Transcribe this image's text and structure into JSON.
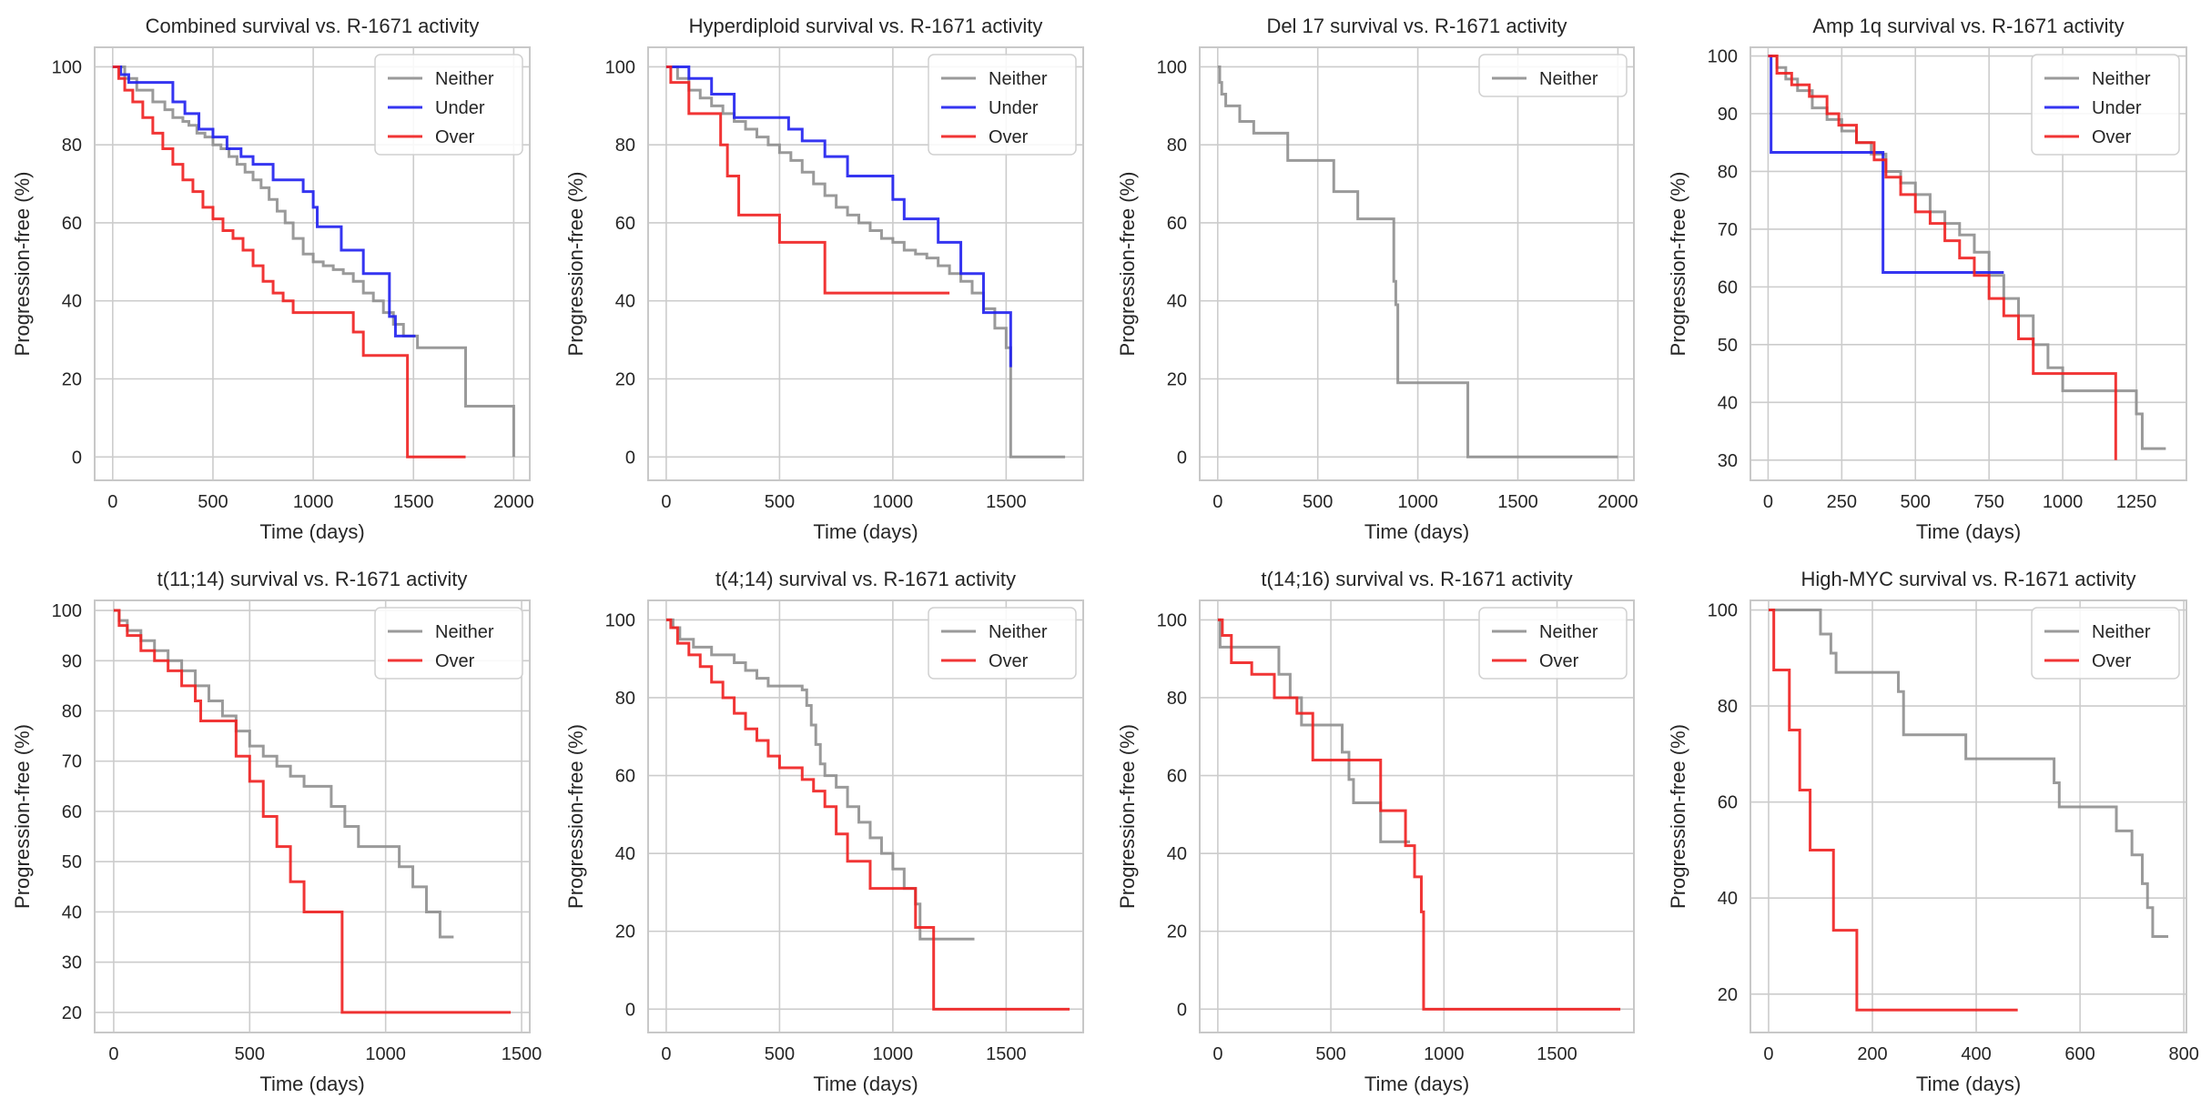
{
  "figure": {
    "colors": {
      "Neither": "#8f8f8f",
      "Under": "#1f1ff0",
      "Over": "#f01f1f",
      "grid": "#cccccc",
      "frame": "#c8c8c8"
    }
  },
  "chart_data": [
    {
      "type": "line",
      "step": true,
      "title": "Combined survival vs. R-1671 activity",
      "xlabel": "Time (days)",
      "ylabel": "Progression-free (%)",
      "xlim": [
        -90,
        2080
      ],
      "ylim": [
        -6,
        105
      ],
      "xticks": [
        0,
        500,
        1000,
        1500,
        2000
      ],
      "yticks": [
        0,
        20,
        40,
        60,
        80,
        100
      ],
      "grid": true,
      "legend": "top-right",
      "series": [
        {
          "name": "Neither",
          "x": [
            0,
            60,
            120,
            200,
            260,
            300,
            350,
            380,
            420,
            460,
            500,
            540,
            580,
            620,
            660,
            700,
            740,
            780,
            820,
            860,
            900,
            950,
            1000,
            1050,
            1100,
            1150,
            1200,
            1250,
            1300,
            1350,
            1400,
            1450,
            1520,
            1760,
            2000
          ],
          "y": [
            100,
            97,
            94,
            91,
            89,
            87,
            86,
            85,
            83,
            82,
            80,
            79,
            77,
            75,
            73,
            71,
            69,
            66,
            63,
            60,
            56,
            52,
            50,
            49,
            48,
            47,
            45,
            42,
            40,
            37,
            34,
            31,
            28,
            13,
            0
          ]
        },
        {
          "name": "Under",
          "x": [
            0,
            40,
            80,
            300,
            360,
            430,
            500,
            570,
            640,
            700,
            800,
            950,
            1000,
            1020,
            1140,
            1250,
            1380,
            1410,
            1510
          ],
          "y": [
            100,
            98,
            96,
            91,
            88,
            84,
            82,
            79,
            77,
            75,
            71,
            68,
            64,
            59,
            53,
            47,
            36,
            31,
            31
          ]
        },
        {
          "name": "Over",
          "x": [
            0,
            30,
            60,
            100,
            150,
            200,
            250,
            300,
            350,
            400,
            450,
            500,
            550,
            600,
            650,
            700,
            750,
            800,
            850,
            900,
            950,
            1200,
            1250,
            1470,
            1760
          ],
          "y": [
            100,
            97,
            94,
            91,
            87,
            83,
            79,
            75,
            71,
            68,
            64,
            61,
            58,
            56,
            53,
            49,
            45,
            42,
            40,
            37,
            37,
            32,
            26,
            0,
            0
          ]
        }
      ]
    },
    {
      "type": "line",
      "step": true,
      "title": "Hyperdiploid survival vs. R-1671 activity",
      "xlabel": "Time (days)",
      "ylabel": "Progression-free (%)",
      "xlim": [
        -80,
        1840
      ],
      "ylim": [
        -6,
        105
      ],
      "xticks": [
        0,
        500,
        1000,
        1500
      ],
      "yticks": [
        0,
        20,
        40,
        60,
        80,
        100
      ],
      "grid": true,
      "legend": "top-right",
      "series": [
        {
          "name": "Neither",
          "x": [
            0,
            50,
            100,
            150,
            200,
            250,
            300,
            350,
            400,
            450,
            500,
            550,
            600,
            650,
            700,
            750,
            800,
            850,
            900,
            950,
            1000,
            1050,
            1100,
            1150,
            1200,
            1250,
            1300,
            1350,
            1400,
            1450,
            1500,
            1520,
            1760
          ],
          "y": [
            100,
            97,
            94,
            92,
            90,
            88,
            86,
            84,
            82,
            80,
            78,
            76,
            73,
            70,
            67,
            64,
            62,
            60,
            58,
            56,
            55,
            53,
            52,
            51,
            49,
            47,
            45,
            42,
            38,
            33,
            28,
            0,
            0
          ]
        },
        {
          "name": "Under",
          "x": [
            0,
            100,
            200,
            300,
            500,
            540,
            600,
            700,
            800,
            900,
            1000,
            1050,
            1200,
            1300,
            1400,
            1520
          ],
          "y": [
            100,
            97,
            93,
            87,
            87,
            84,
            81,
            77,
            72,
            72,
            66,
            61,
            55,
            47,
            37,
            23
          ]
        },
        {
          "name": "Over",
          "x": [
            0,
            20,
            100,
            240,
            270,
            320,
            500,
            700,
            1250
          ],
          "y": [
            100,
            96,
            88,
            80,
            72,
            62,
            55,
            42,
            42
          ]
        }
      ]
    },
    {
      "type": "line",
      "step": true,
      "title": "Del 17 survival vs. R-1671 activity",
      "xlabel": "Time (days)",
      "ylabel": "Progression-free (%)",
      "xlim": [
        -90,
        2080
      ],
      "ylim": [
        -6,
        105
      ],
      "xticks": [
        0,
        500,
        1000,
        1500,
        2000
      ],
      "yticks": [
        0,
        20,
        40,
        60,
        80,
        100
      ],
      "grid": true,
      "legend": "top-right",
      "series": [
        {
          "name": "Neither",
          "x": [
            0,
            10,
            20,
            40,
            110,
            180,
            350,
            580,
            700,
            880,
            890,
            900,
            910,
            1250,
            2000
          ],
          "y": [
            100,
            96,
            93,
            90,
            86,
            83,
            76,
            68,
            61,
            45,
            39,
            19,
            19,
            0,
            0
          ]
        }
      ]
    },
    {
      "type": "line",
      "step": true,
      "title": "Amp 1q survival vs. R-1671 activity",
      "xlabel": "Time (days)",
      "ylabel": "Progression-free (%)",
      "xlim": [
        -60,
        1420
      ],
      "ylim": [
        26.5,
        101.5
      ],
      "xticks": [
        0,
        250,
        500,
        750,
        1000,
        1250
      ],
      "yticks": [
        30,
        40,
        50,
        60,
        70,
        80,
        90,
        100
      ],
      "grid": true,
      "legend": "top-right",
      "series": [
        {
          "name": "Neither",
          "x": [
            0,
            30,
            60,
            100,
            150,
            200,
            250,
            300,
            350,
            400,
            450,
            500,
            550,
            600,
            650,
            700,
            750,
            800,
            850,
            900,
            950,
            1000,
            1050,
            1250,
            1270,
            1350
          ],
          "y": [
            100,
            98,
            96,
            94,
            91,
            89,
            87,
            85,
            83,
            80,
            78,
            76,
            73,
            71,
            69,
            66,
            62,
            58,
            55,
            50,
            46,
            42,
            42,
            38,
            32,
            32
          ]
        },
        {
          "name": "Under",
          "x": [
            0,
            10,
            390,
            800
          ],
          "y": [
            100,
            83.3,
            62.5,
            62.5
          ]
        },
        {
          "name": "Over",
          "x": [
            0,
            30,
            80,
            140,
            200,
            240,
            300,
            360,
            400,
            450,
            500,
            550,
            600,
            650,
            700,
            750,
            800,
            850,
            900,
            1180
          ],
          "y": [
            100,
            97,
            95,
            93,
            90,
            88,
            85,
            82,
            79,
            76,
            73,
            71,
            68,
            65,
            62,
            58,
            55,
            51,
            45,
            30
          ]
        }
      ]
    },
    {
      "type": "line",
      "step": true,
      "title": "t(11;14) survival vs. R-1671 activity",
      "xlabel": "Time (days)",
      "ylabel": "Progression-free (%)",
      "xlim": [
        -70,
        1530
      ],
      "ylim": [
        16,
        102
      ],
      "xticks": [
        0,
        500,
        1000,
        1500
      ],
      "yticks": [
        20,
        30,
        40,
        50,
        60,
        70,
        80,
        90,
        100
      ],
      "grid": true,
      "legend": "top-right",
      "series": [
        {
          "name": "Neither",
          "x": [
            0,
            20,
            50,
            100,
            150,
            200,
            250,
            300,
            350,
            400,
            450,
            500,
            550,
            600,
            650,
            700,
            800,
            850,
            900,
            1000,
            1050,
            1100,
            1150,
            1200,
            1250
          ],
          "y": [
            100,
            98,
            96,
            94,
            92,
            90,
            88,
            85,
            82,
            79,
            76,
            73,
            71,
            69,
            67,
            65,
            61,
            57,
            53,
            53,
            49,
            45,
            40,
            35,
            35
          ]
        },
        {
          "name": "Over",
          "x": [
            0,
            20,
            50,
            100,
            150,
            200,
            250,
            300,
            320,
            450,
            500,
            550,
            600,
            650,
            700,
            830,
            840,
            1460
          ],
          "y": [
            100,
            97,
            95,
            92,
            90,
            88,
            85,
            82,
            78,
            71,
            66,
            59,
            53,
            46,
            40,
            40,
            20,
            20
          ]
        }
      ]
    },
    {
      "type": "line",
      "step": true,
      "title": "t(4;14) survival vs. R-1671 activity",
      "xlabel": "Time (days)",
      "ylabel": "Progression-free (%)",
      "xlim": [
        -80,
        1840
      ],
      "ylim": [
        -6,
        105
      ],
      "xticks": [
        0,
        500,
        1000,
        1500
      ],
      "yticks": [
        0,
        20,
        40,
        60,
        80,
        100
      ],
      "grid": true,
      "legend": "top-right",
      "series": [
        {
          "name": "Neither",
          "x": [
            0,
            30,
            60,
            120,
            200,
            300,
            350,
            400,
            450,
            500,
            550,
            600,
            620,
            640,
            660,
            680,
            700,
            750,
            800,
            850,
            900,
            950,
            1000,
            1050,
            1100,
            1120,
            1360
          ],
          "y": [
            100,
            98,
            95,
            93,
            91,
            89,
            87,
            85,
            83,
            83,
            83,
            82,
            78,
            73,
            68,
            63,
            60,
            57,
            52,
            48,
            44,
            40,
            36,
            31,
            27,
            18,
            18
          ]
        },
        {
          "name": "Over",
          "x": [
            0,
            20,
            50,
            100,
            150,
            200,
            250,
            300,
            350,
            400,
            450,
            500,
            550,
            600,
            650,
            700,
            750,
            800,
            900,
            1100,
            1180,
            1780
          ],
          "y": [
            100,
            98,
            94,
            91,
            88,
            84,
            80,
            76,
            72,
            69,
            65,
            62,
            62,
            59,
            56,
            52,
            45,
            38,
            31,
            21,
            0,
            0
          ]
        }
      ]
    },
    {
      "type": "line",
      "step": true,
      "title": "t(14;16) survival vs. R-1671 activity",
      "xlabel": "Time (days)",
      "ylabel": "Progression-free (%)",
      "xlim": [
        -80,
        1840
      ],
      "ylim": [
        -6,
        105
      ],
      "xticks": [
        0,
        500,
        1000,
        1500
      ],
      "yticks": [
        0,
        20,
        40,
        60,
        80,
        100
      ],
      "grid": true,
      "legend": "top-right",
      "series": [
        {
          "name": "Neither",
          "x": [
            0,
            10,
            270,
            320,
            370,
            550,
            580,
            600,
            720,
            850
          ],
          "y": [
            100,
            93,
            86,
            80,
            73,
            66,
            59,
            53,
            43,
            43
          ]
        },
        {
          "name": "Over",
          "x": [
            0,
            20,
            60,
            150,
            250,
            350,
            420,
            570,
            720,
            830,
            870,
            900,
            910,
            920,
            1780
          ],
          "y": [
            100,
            96,
            89,
            86,
            80,
            76,
            64,
            64,
            51,
            42,
            34,
            25,
            0,
            0,
            0
          ]
        }
      ]
    },
    {
      "type": "line",
      "step": true,
      "title": "High-MYC survival vs. R-1671 activity",
      "xlabel": "Time (days)",
      "ylabel": "Progression-free (%)",
      "xlim": [
        -35,
        805
      ],
      "ylim": [
        12,
        102
      ],
      "xticks": [
        0,
        200,
        400,
        600,
        800
      ],
      "yticks": [
        20,
        40,
        60,
        80,
        100
      ],
      "grid": true,
      "legend": "top-right",
      "series": [
        {
          "name": "Neither",
          "x": [
            0,
            100,
            120,
            130,
            170,
            250,
            260,
            380,
            500,
            550,
            560,
            670,
            700,
            720,
            730,
            740,
            770
          ],
          "y": [
            100,
            95,
            91,
            87,
            87,
            83,
            74,
            69,
            69,
            64,
            59,
            54,
            49,
            43,
            38,
            32,
            32
          ]
        },
        {
          "name": "Over",
          "x": [
            0,
            10,
            40,
            60,
            80,
            125,
            170,
            480
          ],
          "y": [
            100,
            87.5,
            75,
            62.5,
            50,
            33.3,
            16.7,
            16.7
          ]
        }
      ]
    }
  ]
}
